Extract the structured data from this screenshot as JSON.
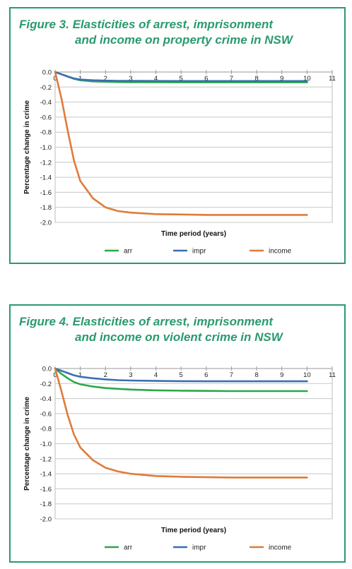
{
  "chart_data": [
    {
      "type": "line",
      "title_line1": "Figure 3. Elasticities of arrest, imprisonment",
      "title_line2": "and income on property crime in NSW",
      "xlabel": "Time period (years)",
      "ylabel": "Percentage change in crime",
      "xlim": [
        0,
        11
      ],
      "ylim": [
        -2.0,
        0.0
      ],
      "xticks": [
        "0",
        "1",
        "2",
        "3",
        "4",
        "5",
        "6",
        "7",
        "8",
        "9",
        "10",
        "11"
      ],
      "yticks": [
        "0.0",
        "-0.2",
        "-0.4",
        "-0.6",
        "-0.8",
        "-1.0",
        "-1.2",
        "-1.4",
        "-1.6",
        "-1.8",
        "-2.0"
      ],
      "grid": true,
      "legend_position": "bottom",
      "x": [
        0,
        0.25,
        0.5,
        0.75,
        1,
        1.5,
        2,
        2.5,
        3,
        4,
        5,
        6,
        7,
        8,
        9,
        10
      ],
      "series": [
        {
          "name": "arr",
          "color": "#2aa84a",
          "values": [
            0,
            -0.03,
            -0.06,
            -0.09,
            -0.11,
            -0.125,
            -0.13,
            -0.133,
            -0.135,
            -0.136,
            -0.137,
            -0.137,
            -0.137,
            -0.137,
            -0.137,
            -0.137
          ]
        },
        {
          "name": "impr",
          "color": "#3a6fb0",
          "values": [
            0,
            -0.03,
            -0.06,
            -0.085,
            -0.1,
            -0.11,
            -0.115,
            -0.117,
            -0.118,
            -0.119,
            -0.12,
            -0.12,
            -0.12,
            -0.12,
            -0.12,
            -0.12
          ]
        },
        {
          "name": "income",
          "color": "#e07b39",
          "values": [
            0,
            -0.35,
            -0.78,
            -1.18,
            -1.45,
            -1.68,
            -1.8,
            -1.85,
            -1.87,
            -1.89,
            -1.895,
            -1.9,
            -1.9,
            -1.9,
            -1.9,
            -1.9
          ]
        }
      ]
    },
    {
      "type": "line",
      "title_line1": "Figure 4. Elasticities of arrest, imprisonment",
      "title_line2": "and income on violent crime in NSW",
      "xlabel": "Time period (years)",
      "ylabel": "Percentage change in crime",
      "xlim": [
        0,
        11
      ],
      "ylim": [
        -2.0,
        0.0
      ],
      "xticks": [
        "0",
        "1",
        "2",
        "3",
        "4",
        "5",
        "6",
        "7",
        "8",
        "9",
        "10",
        "11"
      ],
      "yticks": [
        "0.0",
        "-0.2",
        "-0.4",
        "-0.6",
        "-0.8",
        "-1.0",
        "-1.2",
        "-1.4",
        "-1.6",
        "-1.8",
        "-2.0"
      ],
      "grid": true,
      "legend_position": "bottom",
      "x": [
        0,
        0.25,
        0.5,
        0.75,
        1,
        1.5,
        2,
        2.5,
        3,
        4,
        5,
        6,
        7,
        8,
        9,
        10
      ],
      "series": [
        {
          "name": "arr",
          "color": "#2aa84a",
          "values": [
            0,
            -0.07,
            -0.13,
            -0.18,
            -0.21,
            -0.24,
            -0.26,
            -0.27,
            -0.28,
            -0.29,
            -0.295,
            -0.298,
            -0.3,
            -0.3,
            -0.3,
            -0.3
          ]
        },
        {
          "name": "impr",
          "color": "#3a6fb0",
          "values": [
            0,
            -0.03,
            -0.06,
            -0.09,
            -0.11,
            -0.13,
            -0.145,
            -0.155,
            -0.16,
            -0.165,
            -0.168,
            -0.17,
            -0.17,
            -0.17,
            -0.17,
            -0.17
          ]
        },
        {
          "name": "income",
          "color": "#e07b39",
          "values": [
            0,
            -0.3,
            -0.62,
            -0.88,
            -1.05,
            -1.22,
            -1.32,
            -1.37,
            -1.4,
            -1.43,
            -1.44,
            -1.445,
            -1.45,
            -1.45,
            -1.45,
            -1.45
          ]
        }
      ]
    }
  ]
}
